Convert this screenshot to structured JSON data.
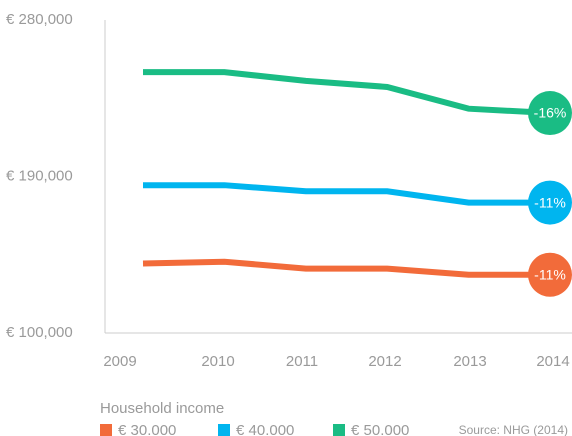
{
  "chart_data": {
    "type": "line",
    "x": [
      "2009",
      "2010",
      "2011",
      "2012",
      "2013",
      "2014"
    ],
    "series": [
      {
        "name": "€ 30.000",
        "color": "#f26b3a",
        "values": [
          140000,
          141000,
          137000,
          137000,
          133500,
          133500
        ],
        "end_label": "-11%"
      },
      {
        "name": "€ 40.000",
        "color": "#00b5ef",
        "values": [
          185000,
          185000,
          181500,
          181500,
          175000,
          175000
        ],
        "end_label": "-11%"
      },
      {
        "name": "€ 50.000",
        "color": "#1abc84",
        "values": [
          250000,
          250000,
          245000,
          241500,
          229000,
          226500
        ],
        "end_label": "-16%"
      }
    ],
    "ylim": [
      100000,
      280000
    ],
    "yticks": [
      {
        "value": 100000,
        "label": "€ 100,000"
      },
      {
        "value": 190000,
        "label": "€ 190,000"
      },
      {
        "value": 280000,
        "label": "€ 280,000"
      }
    ],
    "legend_title": "Household income",
    "source": "Source: NHG (2014)"
  }
}
